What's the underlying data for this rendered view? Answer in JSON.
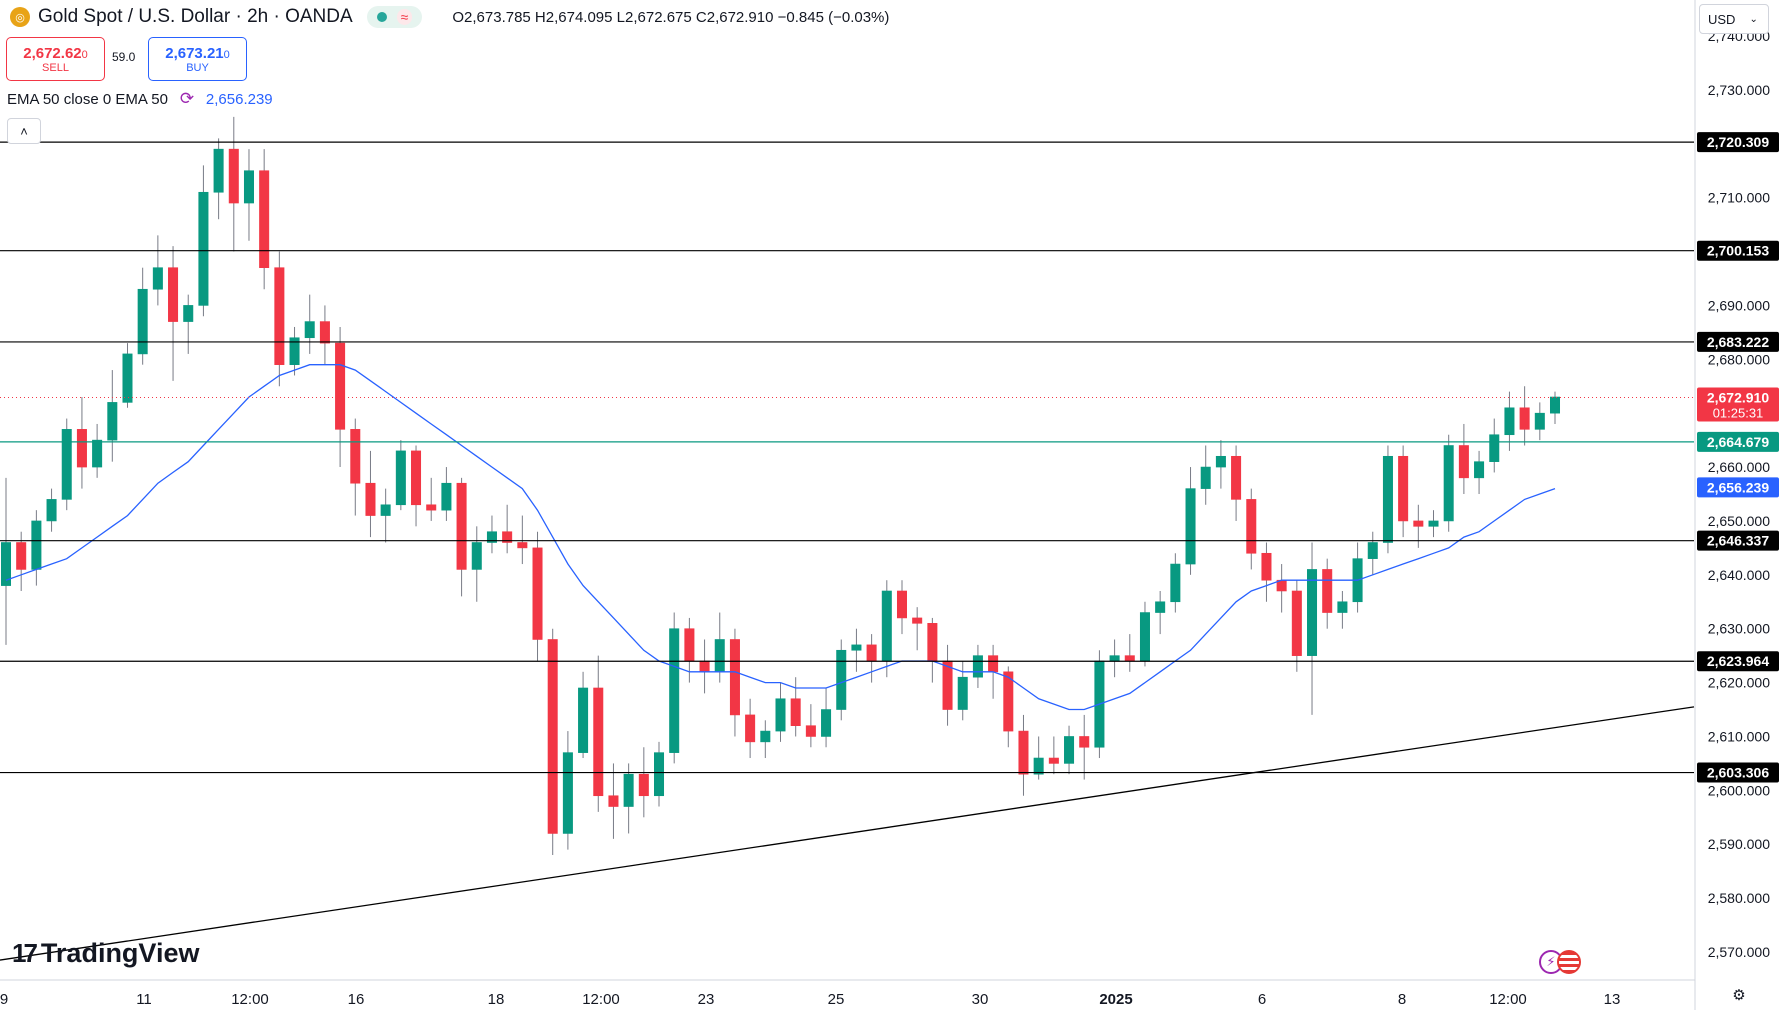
{
  "header": {
    "symbol_title": "Gold Spot / U.S. Dollar · 2h · OANDA",
    "ohlc": "O2,673.785 H2,674.095 L2,672.675 C2,672.910 −0.845 (−0.03%)"
  },
  "trade": {
    "sell_price": "2,672.62",
    "sell_price_small": "0",
    "sell_label": "SELL",
    "spread": "59.0",
    "buy_price": "2,673.21",
    "buy_price_small": "0",
    "buy_label": "BUY"
  },
  "indicator": {
    "label": "EMA 50 close 0 EMA 50",
    "value": "2,656.239"
  },
  "controls": {
    "collapse_glyph": "˄",
    "currency": "USD",
    "currency_caret": "⌄"
  },
  "branding": {
    "logo_text": "TradingView",
    "logo_mark": "17"
  },
  "colors": {
    "up": "#089981",
    "down": "#f23645",
    "ema": "#2962ff",
    "level_line": "#000000",
    "teal_level": "#089981",
    "last_price": "#f23645"
  },
  "icons": [
    "gold-coin-icon",
    "market-open-dot-icon",
    "wave-icon",
    "refresh-icon",
    "chevron-up-icon",
    "lightning-icon",
    "us-flag-icon",
    "settings-icon"
  ],
  "chart_data": {
    "type": "candlestick",
    "title": "Gold Spot / U.S. Dollar · 2h · OANDA",
    "ylim": [
      2566,
      2744
    ],
    "y_ticks": [
      2570,
      2580,
      2590,
      2600,
      2610,
      2620,
      2630,
      2640,
      2650,
      2660,
      2680,
      2690,
      2710,
      2730,
      2740
    ],
    "y_tick_labels": [
      "2,570.000",
      "2,580.000",
      "2,590.000",
      "2,600.000",
      "2,610.000",
      "2,620.000",
      "2,630.000",
      "2,640.000",
      "2,650.000",
      "2,660.000",
      "2,680.000",
      "2,690.000",
      "2,710.000",
      "2,730.000",
      "2,740.000"
    ],
    "x_labels": [
      "9",
      "11",
      "12:00",
      "16",
      "18",
      "12:00",
      "23",
      "25",
      "30",
      "2025",
      "6",
      "8",
      "12:00",
      "13"
    ],
    "horizontal_levels": [
      {
        "value": 2720.309,
        "label": "2,720.309",
        "color": "#000000"
      },
      {
        "value": 2700.153,
        "label": "2,700.153",
        "color": "#000000"
      },
      {
        "value": 2683.222,
        "label": "2,683.222",
        "color": "#000000"
      },
      {
        "value": 2646.337,
        "label": "2,646.337",
        "color": "#000000"
      },
      {
        "value": 2623.964,
        "label": "2,623.964",
        "color": "#000000"
      },
      {
        "value": 2603.306,
        "label": "2,603.306",
        "color": "#000000"
      },
      {
        "value": 2664.679,
        "label": "2,664.679",
        "color": "#089981"
      }
    ],
    "last_price": {
      "value": 2672.91,
      "label": "2,672.910",
      "countdown": "01:25:31"
    },
    "ema": {
      "value": 2656.239,
      "label": "2,656.239"
    },
    "trendline": {
      "x0": 0,
      "y0": 2568.5,
      "x1": 169,
      "y1": 2615.5
    },
    "candles": [
      {
        "o": 2638,
        "h": 2658,
        "l": 2627,
        "c": 2646
      },
      {
        "o": 2646,
        "h": 2648,
        "l": 2637,
        "c": 2641
      },
      {
        "o": 2641,
        "h": 2652,
        "l": 2638,
        "c": 2650
      },
      {
        "o": 2650,
        "h": 2656,
        "l": 2648,
        "c": 2654
      },
      {
        "o": 2654,
        "h": 2669,
        "l": 2652,
        "c": 2667
      },
      {
        "o": 2667,
        "h": 2673,
        "l": 2656,
        "c": 2660
      },
      {
        "o": 2660,
        "h": 2668,
        "l": 2658,
        "c": 2665
      },
      {
        "o": 2665,
        "h": 2678,
        "l": 2661,
        "c": 2672
      },
      {
        "o": 2672,
        "h": 2683,
        "l": 2671,
        "c": 2681
      },
      {
        "o": 2681,
        "h": 2697,
        "l": 2679,
        "c": 2693
      },
      {
        "o": 2693,
        "h": 2703,
        "l": 2690,
        "c": 2697
      },
      {
        "o": 2697,
        "h": 2701,
        "l": 2676,
        "c": 2687
      },
      {
        "o": 2687,
        "h": 2692,
        "l": 2681,
        "c": 2690
      },
      {
        "o": 2690,
        "h": 2716,
        "l": 2688,
        "c": 2711
      },
      {
        "o": 2711,
        "h": 2721,
        "l": 2706,
        "c": 2719
      },
      {
        "o": 2719,
        "h": 2725,
        "l": 2700,
        "c": 2709
      },
      {
        "o": 2709,
        "h": 2719,
        "l": 2702,
        "c": 2715
      },
      {
        "o": 2715,
        "h": 2719,
        "l": 2693,
        "c": 2697
      },
      {
        "o": 2697,
        "h": 2700,
        "l": 2675,
        "c": 2679
      },
      {
        "o": 2679,
        "h": 2686,
        "l": 2677,
        "c": 2684
      },
      {
        "o": 2684,
        "h": 2692,
        "l": 2681,
        "c": 2687
      },
      {
        "o": 2687,
        "h": 2690,
        "l": 2679,
        "c": 2683
      },
      {
        "o": 2683,
        "h": 2686,
        "l": 2660,
        "c": 2667
      },
      {
        "o": 2667,
        "h": 2669,
        "l": 2651,
        "c": 2657
      },
      {
        "o": 2657,
        "h": 2663,
        "l": 2647,
        "c": 2651
      },
      {
        "o": 2651,
        "h": 2656,
        "l": 2646,
        "c": 2653
      },
      {
        "o": 2653,
        "h": 2665,
        "l": 2652,
        "c": 2663
      },
      {
        "o": 2663,
        "h": 2664,
        "l": 2649,
        "c": 2653
      },
      {
        "o": 2653,
        "h": 2658,
        "l": 2650,
        "c": 2652
      },
      {
        "o": 2652,
        "h": 2660,
        "l": 2650,
        "c": 2657
      },
      {
        "o": 2657,
        "h": 2658,
        "l": 2636,
        "c": 2641
      },
      {
        "o": 2641,
        "h": 2649,
        "l": 2635,
        "c": 2646
      },
      {
        "o": 2646,
        "h": 2651,
        "l": 2644,
        "c": 2648
      },
      {
        "o": 2648,
        "h": 2653,
        "l": 2644,
        "c": 2646
      },
      {
        "o": 2646,
        "h": 2651,
        "l": 2642,
        "c": 2645
      },
      {
        "o": 2645,
        "h": 2648,
        "l": 2624,
        "c": 2628
      },
      {
        "o": 2628,
        "h": 2630,
        "l": 2588,
        "c": 2592
      },
      {
        "o": 2592,
        "h": 2611,
        "l": 2589,
        "c": 2607
      },
      {
        "o": 2607,
        "h": 2622,
        "l": 2606,
        "c": 2619
      },
      {
        "o": 2619,
        "h": 2625,
        "l": 2596,
        "c": 2599
      },
      {
        "o": 2599,
        "h": 2605,
        "l": 2591,
        "c": 2597
      },
      {
        "o": 2597,
        "h": 2605,
        "l": 2592,
        "c": 2603
      },
      {
        "o": 2603,
        "h": 2608,
        "l": 2595,
        "c": 2599
      },
      {
        "o": 2599,
        "h": 2609,
        "l": 2597,
        "c": 2607
      },
      {
        "o": 2607,
        "h": 2633,
        "l": 2605,
        "c": 2630
      },
      {
        "o": 2630,
        "h": 2632,
        "l": 2620,
        "c": 2624
      },
      {
        "o": 2624,
        "h": 2628,
        "l": 2618,
        "c": 2622
      },
      {
        "o": 2622,
        "h": 2633,
        "l": 2620,
        "c": 2628
      },
      {
        "o": 2628,
        "h": 2630,
        "l": 2610,
        "c": 2614
      },
      {
        "o": 2614,
        "h": 2617,
        "l": 2606,
        "c": 2609
      },
      {
        "o": 2609,
        "h": 2613,
        "l": 2606,
        "c": 2611
      },
      {
        "o": 2611,
        "h": 2620,
        "l": 2609,
        "c": 2617
      },
      {
        "o": 2617,
        "h": 2621,
        "l": 2610,
        "c": 2612
      },
      {
        "o": 2612,
        "h": 2616,
        "l": 2608,
        "c": 2610
      },
      {
        "o": 2610,
        "h": 2619,
        "l": 2608,
        "c": 2615
      },
      {
        "o": 2615,
        "h": 2628,
        "l": 2613,
        "c": 2626
      },
      {
        "o": 2626,
        "h": 2630,
        "l": 2622,
        "c": 2627
      },
      {
        "o": 2627,
        "h": 2629,
        "l": 2620,
        "c": 2624
      },
      {
        "o": 2624,
        "h": 2639,
        "l": 2621,
        "c": 2637
      },
      {
        "o": 2637,
        "h": 2639,
        "l": 2629,
        "c": 2632
      },
      {
        "o": 2632,
        "h": 2634,
        "l": 2626,
        "c": 2631
      },
      {
        "o": 2631,
        "h": 2632,
        "l": 2620,
        "c": 2624
      },
      {
        "o": 2624,
        "h": 2627,
        "l": 2612,
        "c": 2615
      },
      {
        "o": 2615,
        "h": 2624,
        "l": 2613,
        "c": 2621
      },
      {
        "o": 2621,
        "h": 2627,
        "l": 2619,
        "c": 2625
      },
      {
        "o": 2625,
        "h": 2627,
        "l": 2617,
        "c": 2622
      },
      {
        "o": 2622,
        "h": 2623,
        "l": 2608,
        "c": 2611
      },
      {
        "o": 2611,
        "h": 2614,
        "l": 2599,
        "c": 2603
      },
      {
        "o": 2603,
        "h": 2610,
        "l": 2602,
        "c": 2606
      },
      {
        "o": 2606,
        "h": 2610,
        "l": 2603,
        "c": 2605
      },
      {
        "o": 2605,
        "h": 2612,
        "l": 2603,
        "c": 2610
      },
      {
        "o": 2610,
        "h": 2614,
        "l": 2602,
        "c": 2608
      },
      {
        "o": 2608,
        "h": 2626,
        "l": 2606,
        "c": 2624
      },
      {
        "o": 2624,
        "h": 2628,
        "l": 2621,
        "c": 2625
      },
      {
        "o": 2625,
        "h": 2629,
        "l": 2622,
        "c": 2624
      },
      {
        "o": 2624,
        "h": 2635,
        "l": 2623,
        "c": 2633
      },
      {
        "o": 2633,
        "h": 2637,
        "l": 2629,
        "c": 2635
      },
      {
        "o": 2635,
        "h": 2644,
        "l": 2633,
        "c": 2642
      },
      {
        "o": 2642,
        "h": 2660,
        "l": 2640,
        "c": 2656
      },
      {
        "o": 2656,
        "h": 2664,
        "l": 2653,
        "c": 2660
      },
      {
        "o": 2660,
        "h": 2665,
        "l": 2656,
        "c": 2662
      },
      {
        "o": 2662,
        "h": 2664,
        "l": 2650,
        "c": 2654
      },
      {
        "o": 2654,
        "h": 2656,
        "l": 2641,
        "c": 2644
      },
      {
        "o": 2644,
        "h": 2646,
        "l": 2635,
        "c": 2639
      },
      {
        "o": 2639,
        "h": 2642,
        "l": 2633,
        "c": 2637
      },
      {
        "o": 2637,
        "h": 2639,
        "l": 2622,
        "c": 2625
      },
      {
        "o": 2625,
        "h": 2646,
        "l": 2614,
        "c": 2641
      },
      {
        "o": 2641,
        "h": 2643,
        "l": 2630,
        "c": 2633
      },
      {
        "o": 2633,
        "h": 2637,
        "l": 2630,
        "c": 2635
      },
      {
        "o": 2635,
        "h": 2646,
        "l": 2633,
        "c": 2643
      },
      {
        "o": 2643,
        "h": 2648,
        "l": 2640,
        "c": 2646
      },
      {
        "o": 2646,
        "h": 2664,
        "l": 2644,
        "c": 2662
      },
      {
        "o": 2662,
        "h": 2664,
        "l": 2647,
        "c": 2650
      },
      {
        "o": 2650,
        "h": 2653,
        "l": 2645,
        "c": 2649
      },
      {
        "o": 2649,
        "h": 2652,
        "l": 2647,
        "c": 2650
      },
      {
        "o": 2650,
        "h": 2666,
        "l": 2648,
        "c": 2664
      },
      {
        "o": 2664,
        "h": 2668,
        "l": 2655,
        "c": 2658
      },
      {
        "o": 2658,
        "h": 2663,
        "l": 2655,
        "c": 2661
      },
      {
        "o": 2661,
        "h": 2669,
        "l": 2659,
        "c": 2666
      },
      {
        "o": 2666,
        "h": 2674,
        "l": 2663,
        "c": 2671
      },
      {
        "o": 2671,
        "h": 2675,
        "l": 2664,
        "c": 2667
      },
      {
        "o": 2667,
        "h": 2672,
        "l": 2665,
        "c": 2670
      },
      {
        "o": 2670,
        "h": 2674,
        "l": 2668,
        "c": 2673
      }
    ],
    "ema_series": [
      2639,
      2640,
      2641,
      2642,
      2643,
      2645,
      2647,
      2649,
      2651,
      2654,
      2657,
      2659,
      2661,
      2664,
      2667,
      2670,
      2673,
      2675,
      2677,
      2678,
      2679,
      2679,
      2679,
      2678,
      2676,
      2674,
      2672,
      2670,
      2668,
      2666,
      2664,
      2662,
      2660,
      2658,
      2656,
      2652,
      2647,
      2642,
      2638,
      2635,
      2632,
      2629,
      2626,
      2624,
      2623,
      2622,
      2622,
      2622,
      2622,
      2621,
      2620,
      2620,
      2619,
      2619,
      2619,
      2620,
      2621,
      2622,
      2623,
      2624,
      2624,
      2624,
      2623,
      2622,
      2622,
      2622,
      2621,
      2619,
      2617,
      2616,
      2615,
      2615,
      2616,
      2617,
      2618,
      2620,
      2622,
      2624,
      2626,
      2629,
      2632,
      2635,
      2637,
      2638,
      2639,
      2639,
      2639,
      2639,
      2639,
      2639,
      2640,
      2641,
      2642,
      2643,
      2644,
      2645,
      2647,
      2648,
      2650,
      2652,
      2654,
      2655,
      2656
    ]
  }
}
